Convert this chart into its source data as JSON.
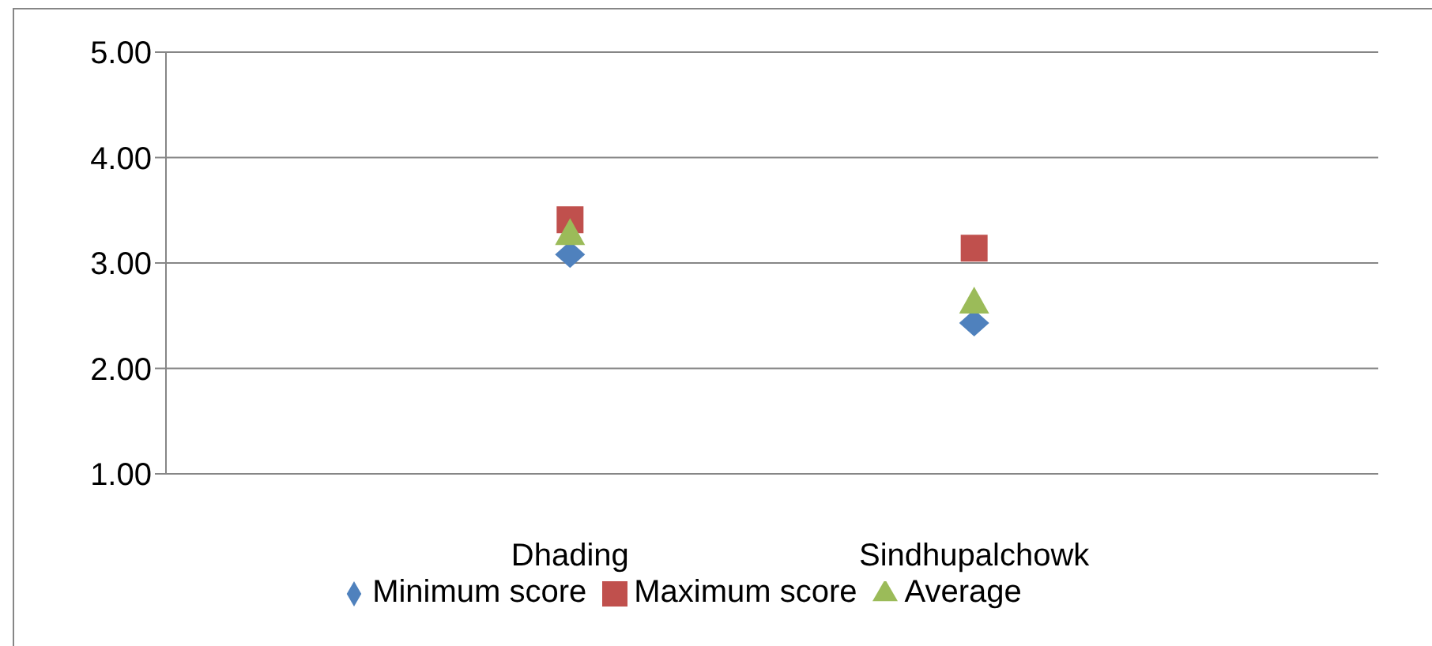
{
  "chart_data": {
    "type": "scatter",
    "categories": [
      "Dhading",
      "Sindhupalchowk"
    ],
    "series": [
      {
        "name": "Minimum score",
        "color": "#4f81bd",
        "marker": "diamond",
        "values": [
          3.08,
          2.43
        ]
      },
      {
        "name": "Maximum score",
        "color": "#c0504d",
        "marker": "square",
        "values": [
          3.41,
          3.14
        ]
      },
      {
        "name": "Average",
        "color": "#9bbb59",
        "marker": "triangle",
        "values": [
          3.29,
          2.64
        ]
      }
    ],
    "ylim": [
      1,
      5
    ],
    "yticks": [
      {
        "value": 1,
        "label": "1.00"
      },
      {
        "value": 2,
        "label": "2.00"
      },
      {
        "value": 3,
        "label": "3.00"
      },
      {
        "value": 4,
        "label": "4.00"
      },
      {
        "value": 5,
        "label": "5.00"
      }
    ],
    "grid": "y",
    "legend": "bottom"
  }
}
